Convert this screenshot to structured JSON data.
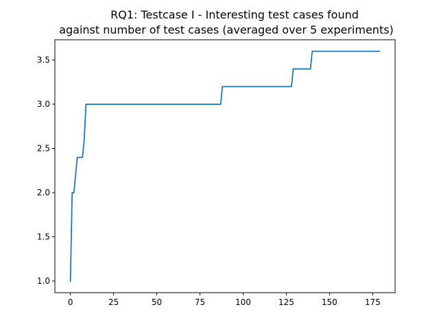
{
  "chart_data": {
    "type": "line",
    "title": "RQ1: Testcase I - Interesting test cases found\nagainst number of test cases (averaged over 5 experiments)",
    "title_lines": [
      "RQ1: Testcase I - Interesting test cases found",
      "against number of test cases (averaged over 5 experiments)"
    ],
    "xlabel": "",
    "ylabel": "",
    "xlim": [
      -9,
      188
    ],
    "ylim": [
      0.87,
      3.73
    ],
    "xticks": [
      0,
      25,
      50,
      75,
      100,
      125,
      150,
      175
    ],
    "xtick_labels": [
      "0",
      "25",
      "50",
      "75",
      "100",
      "125",
      "150",
      "175"
    ],
    "yticks": [
      1.0,
      1.5,
      2.0,
      2.5,
      3.0,
      3.5
    ],
    "ytick_labels": [
      "1.0",
      "1.5",
      "2.0",
      "2.5",
      "3.0",
      "3.5"
    ],
    "grid": false,
    "legend": "none",
    "line_color": "#1f77b4",
    "series": [
      {
        "x": [
          0,
          1,
          2,
          3,
          4,
          5,
          6,
          7,
          8,
          9,
          87,
          88,
          128,
          129,
          139,
          140,
          179
        ],
        "values": [
          1.0,
          2.0,
          2.0,
          2.2,
          2.4,
          2.4,
          2.4,
          2.4,
          2.6,
          3.0,
          3.0,
          3.2,
          3.2,
          3.4,
          3.4,
          3.6,
          3.6
        ]
      }
    ]
  }
}
